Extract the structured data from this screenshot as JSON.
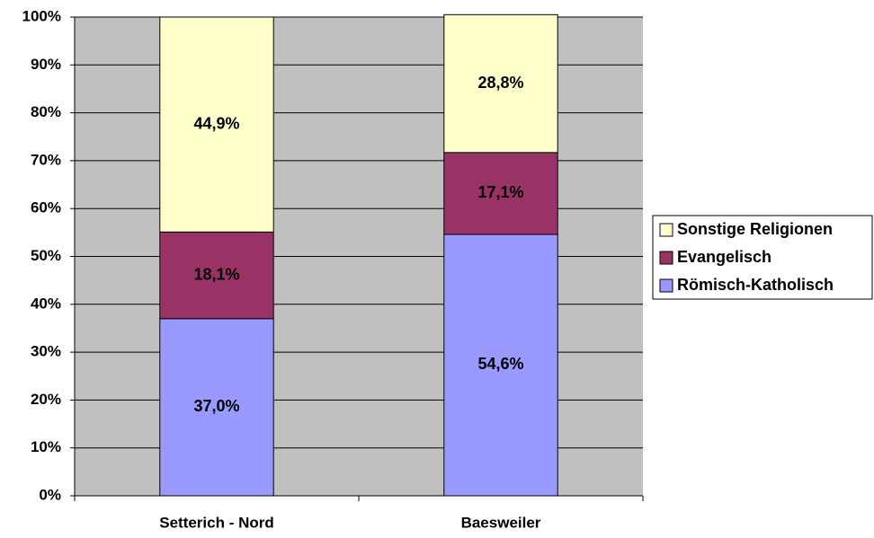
{
  "chart_data": {
    "type": "stacked_bar",
    "categories": [
      "Setterich - Nord",
      "Baesweiler"
    ],
    "series": [
      {
        "name": "Römisch-Katholisch",
        "color": "#9999ff",
        "values": [
          37.0,
          54.6
        ],
        "value_labels": [
          "37,0%",
          "54,6%"
        ]
      },
      {
        "name": "Evangelisch",
        "color": "#993366",
        "values": [
          18.1,
          17.1
        ],
        "value_labels": [
          "18,1%",
          "17,1%"
        ]
      },
      {
        "name": "Sonstige Religionen",
        "color": "#ffffcc",
        "values": [
          44.9,
          28.8
        ],
        "value_labels": [
          "44,9%",
          "28,8%"
        ]
      }
    ],
    "ylim": [
      0,
      100
    ],
    "yticks": [
      {
        "value": 0,
        "label": "0%"
      },
      {
        "value": 10,
        "label": "10%"
      },
      {
        "value": 20,
        "label": "20%"
      },
      {
        "value": 30,
        "label": "30%"
      },
      {
        "value": 40,
        "label": "40%"
      },
      {
        "value": 50,
        "label": "50%"
      },
      {
        "value": 60,
        "label": "60%"
      },
      {
        "value": 70,
        "label": "70%"
      },
      {
        "value": 80,
        "label": "80%"
      },
      {
        "value": 90,
        "label": "90%"
      },
      {
        "value": 100,
        "label": "100%"
      }
    ],
    "grid": true,
    "legend": "right",
    "background": "#c0c0c0"
  }
}
